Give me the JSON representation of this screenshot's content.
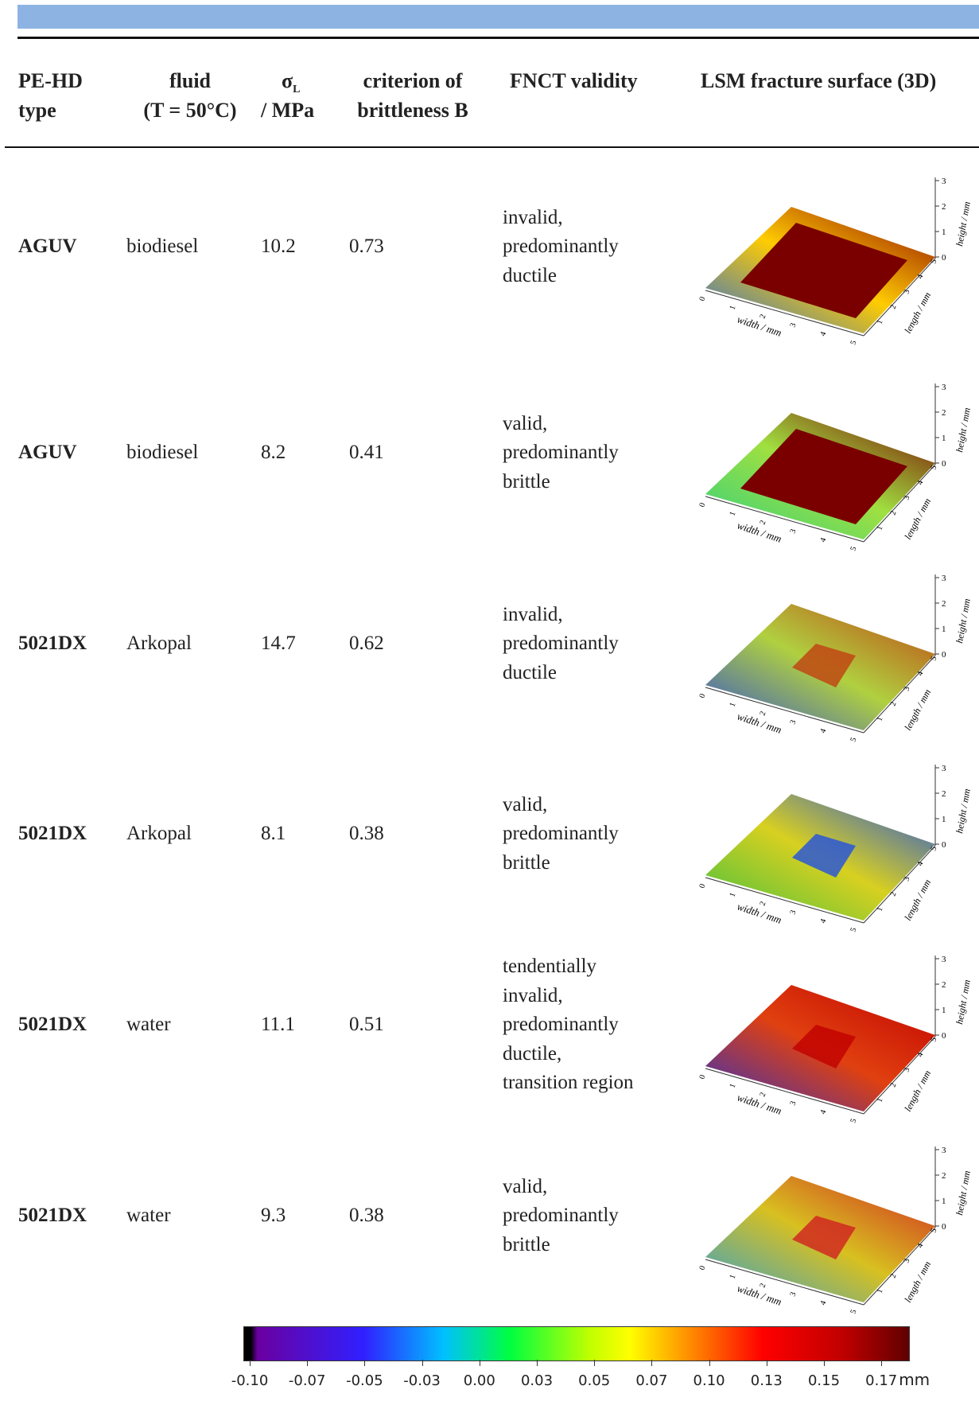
{
  "header": {
    "columns": [
      {
        "lines": [
          "PE-HD",
          "type"
        ]
      },
      {
        "lines": [
          "fluid",
          "(T = 50°C)"
        ]
      },
      {
        "symbol": "σ",
        "subscript": "L",
        "lines": [
          "/ MPa"
        ]
      },
      {
        "lines": [
          "criterion of",
          "brittleness B"
        ]
      },
      {
        "lines": [
          "FNCT validity"
        ]
      },
      {
        "lines": [
          "LSM fracture surface (3D)"
        ]
      }
    ]
  },
  "table": {
    "rows": [
      {
        "type": "AGUV",
        "fluid": "biodiesel",
        "sigma": 10.2,
        "B": 0.73,
        "validity": [
          "invalid,",
          "predominantly",
          "ductile"
        ]
      },
      {
        "type": "AGUV",
        "fluid": "biodiesel",
        "sigma": 8.2,
        "B": 0.41,
        "validity": [
          "valid,",
          "predominantly",
          "brittle"
        ]
      },
      {
        "type": "5021DX",
        "fluid": "Arkopal",
        "sigma": 14.7,
        "B": 0.62,
        "validity": [
          "invalid,",
          "predominantly",
          "ductile"
        ]
      },
      {
        "type": "5021DX",
        "fluid": "Arkopal",
        "sigma": 8.1,
        "B": 0.38,
        "validity": [
          "valid,",
          "predominantly",
          "brittle"
        ]
      },
      {
        "type": "5021DX",
        "fluid": "water",
        "sigma": 11.1,
        "B": 0.51,
        "validity": [
          "tendentially",
          "invalid,",
          "predominantly",
          "ductile,",
          "transition region"
        ]
      },
      {
        "type": "5021DX",
        "fluid": "water",
        "sigma": 9.3,
        "B": 0.38,
        "validity": [
          "valid,",
          "predominantly",
          "brittle"
        ]
      }
    ]
  },
  "surface_axes": {
    "width_label": "width / mm",
    "length_label": "length / mm",
    "height_label": "height / mm",
    "width_ticks": [
      "0",
      "1",
      "2",
      "3",
      "4",
      "5"
    ],
    "length_ticks": [
      "1",
      "2",
      "3",
      "4",
      "5"
    ],
    "height_ticks": [
      "0",
      "1",
      "2",
      "3"
    ]
  },
  "colorbar": {
    "labels": [
      "-0.10",
      "-0.07",
      "-0.05",
      "-0.03",
      "0.00",
      "0.03",
      "0.05",
      "0.07",
      "0.10",
      "0.13",
      "0.15",
      "0.17"
    ],
    "unit": "mm"
  }
}
